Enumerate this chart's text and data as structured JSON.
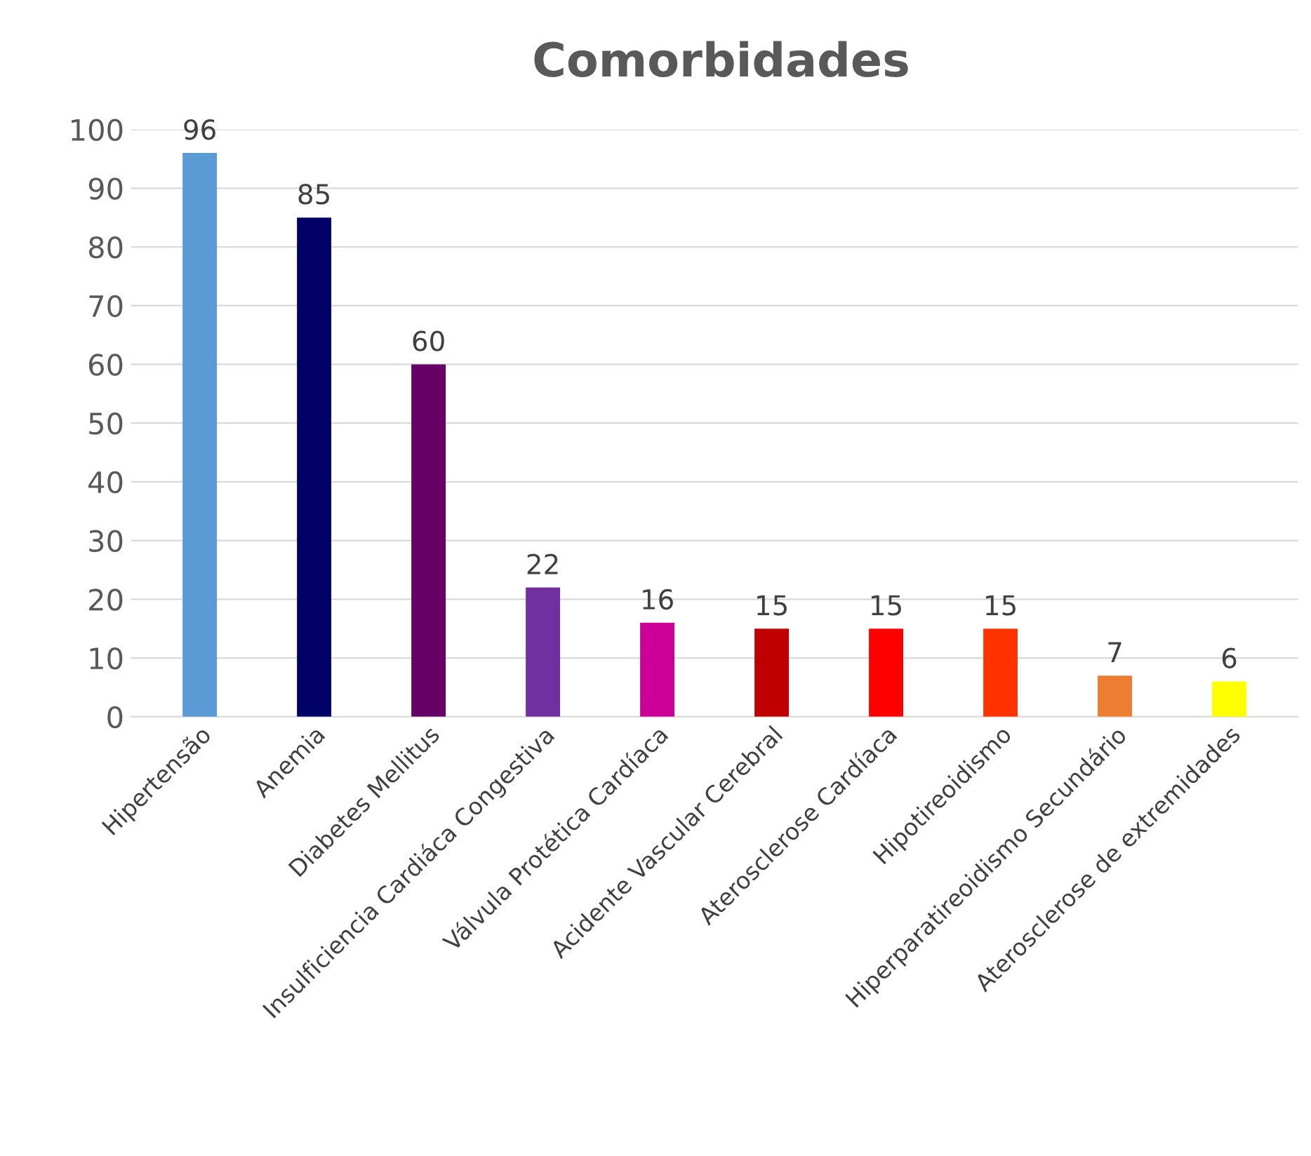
{
  "chart_data": {
    "type": "bar",
    "title": "Comorbidades",
    "categories": [
      "Hipertensão",
      "Anemia",
      "Diabetes Mellitus",
      "Insulficiencia Cardiáca Congestiva",
      "Válvula Protética Cardíaca",
      "Acidente Vascular Cerebral",
      "Aterosclerose Cardíaca",
      "Hipotireoidismo",
      "Hiperparatireoidismo Secundário",
      "Aterosclerose de extremidades"
    ],
    "values": [
      96,
      85,
      60,
      22,
      16,
      15,
      15,
      15,
      7,
      6
    ],
    "colors": [
      "#5b9bd5",
      "#000066",
      "#660066",
      "#7030a0",
      "#cc0099",
      "#c00000",
      "#ff0000",
      "#ff3300",
      "#ed7d31",
      "#ffff00"
    ],
    "ylim": [
      0,
      100
    ],
    "yticks": [
      0,
      10,
      20,
      30,
      40,
      50,
      60,
      70,
      80,
      90,
      100
    ],
    "grid": "y",
    "data_labels": true,
    "legend": false
  }
}
